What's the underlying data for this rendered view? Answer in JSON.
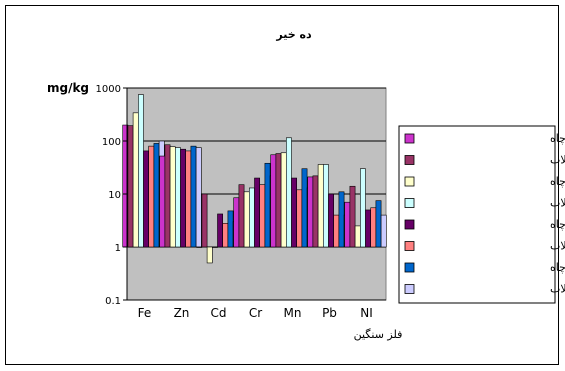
{
  "chart_data": {
    "type": "bar",
    "title": "ده خیر",
    "ylabel": "mg/kg",
    "xlabel": "فلز سنگین",
    "y_scale": "log",
    "ylim": [
      0.1,
      1000
    ],
    "y_ticks": [
      "0.1",
      "1",
      "10",
      "100",
      "1000"
    ],
    "categories": [
      "Fe",
      "Zn",
      "Cd",
      "Cr",
      "Mn",
      "Pb",
      "NI"
    ],
    "legend_position": "right",
    "plot_background": "#c0c0c0",
    "series": [
      {
        "name": "اندام هوایی - چاه",
        "color": "#cc33cc",
        "values": [
          200,
          52,
          1,
          8.5,
          55,
          21,
          7
        ]
      },
      {
        "name": "اندام هوایی - فاضلاب",
        "color": "#993366",
        "values": [
          195,
          85,
          10,
          15,
          58,
          22,
          14
        ]
      },
      {
        "name": "ریشه - چاه",
        "color": "#ffffcc",
        "values": [
          340,
          78,
          0.5,
          11,
          60,
          36,
          2.5
        ]
      },
      {
        "name": "ریشه - فاضلاب",
        "color": "#ccffff",
        "values": [
          750,
          75,
          1,
          13,
          115,
          36,
          30
        ]
      },
      {
        "name": "دانه - چاه",
        "color": "#660066",
        "values": [
          65,
          70,
          4.2,
          20,
          20,
          10,
          5
        ]
      },
      {
        "name": "دانه - فاضلاب",
        "color": "#ff8080",
        "values": [
          80,
          65,
          2.8,
          15,
          12,
          4,
          5.5
        ]
      },
      {
        "name": "بلال - چاه",
        "color": "#0066cc",
        "values": [
          90,
          80,
          4.8,
          38,
          30,
          11,
          7.5
        ]
      },
      {
        "name": "بلال - فاضلاب",
        "color": "#ccccff",
        "values": [
          100,
          75,
          3,
          22,
          13,
          4,
          4
        ]
      }
    ]
  }
}
